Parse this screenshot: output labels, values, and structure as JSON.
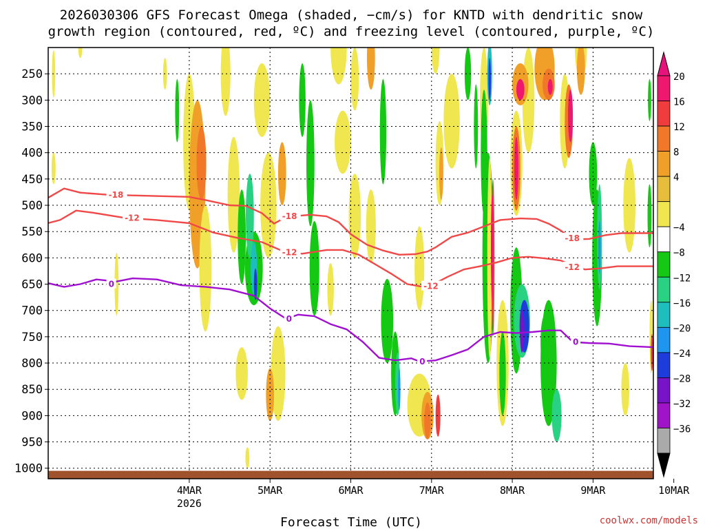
{
  "chart_data": {
    "type": "heatmap",
    "title_line1": "2026030306 GFS Forecast Omega (shaded, −cm/s) for KNTD with dendritic snow",
    "title_line2": "growth region (contoured, red, ºC) and freezing level (contoured, purple, ºC)",
    "xlabel": "Forecast Time (UTC)",
    "credit": "coolwx.com/models",
    "x_ticks": [
      {
        "label": "4MAR",
        "sublabel": "2026",
        "day": 1
      },
      {
        "label": "5MAR",
        "sublabel": "",
        "day": 2
      },
      {
        "label": "6MAR",
        "sublabel": "",
        "day": 3
      },
      {
        "label": "7MAR",
        "sublabel": "",
        "day": 4
      },
      {
        "label": "8MAR",
        "sublabel": "",
        "day": 5
      },
      {
        "label": "9MAR",
        "sublabel": "",
        "day": 6
      },
      {
        "label": "10MAR",
        "sublabel": "",
        "day": 7
      }
    ],
    "x_range_days": [
      -0.747,
      6.747
    ],
    "y_ticks": [
      "250",
      "300",
      "350",
      "400",
      "450",
      "500",
      "550",
      "600",
      "650",
      "700",
      "750",
      "800",
      "850",
      "900",
      "950",
      "1000"
    ],
    "y_range_hpa": [
      200,
      1020
    ],
    "colorbar": {
      "labels": [
        "20",
        "16",
        "12",
        "8",
        "4",
        "−4",
        "−8",
        "−12",
        "−16",
        "−20",
        "−24",
        "−28",
        "−32",
        "−36"
      ],
      "colors": [
        "#f0186e",
        "#f03c3c",
        "#f07828",
        "#f0a028",
        "#e6be3c",
        "#f0e650",
        "#ffffff",
        "#14c814",
        "#28d282",
        "#1ebebe",
        "#1e96f0",
        "#1e3cdc",
        "#7814c8",
        "#a014c8",
        "#aaaaaa"
      ]
    },
    "contours": [
      {
        "name": "dendritic-18",
        "label": "-18",
        "color": "#f04848",
        "points": [
          [
            -0.75,
            486
          ],
          [
            -0.55,
            468
          ],
          [
            -0.35,
            476
          ],
          [
            0,
            480
          ],
          [
            0.5,
            482
          ],
          [
            1,
            484
          ],
          [
            1.2,
            490
          ],
          [
            1.5,
            500
          ],
          [
            1.7,
            501
          ],
          [
            1.9,
            515
          ],
          [
            2.05,
            535
          ],
          [
            2.2,
            522
          ],
          [
            2.5,
            518
          ],
          [
            2.7,
            521
          ],
          [
            2.85,
            532
          ],
          [
            3.0,
            555
          ],
          [
            3.2,
            575
          ],
          [
            3.4,
            586
          ],
          [
            3.6,
            594
          ],
          [
            3.8,
            593
          ],
          [
            3.95,
            588
          ],
          [
            4.05,
            580
          ],
          [
            4.25,
            560
          ],
          [
            4.45,
            552
          ],
          [
            4.65,
            540
          ],
          [
            4.85,
            528
          ],
          [
            5.1,
            525
          ],
          [
            5.3,
            526
          ],
          [
            5.45,
            535
          ],
          [
            5.6,
            548
          ],
          [
            5.75,
            565
          ],
          [
            5.95,
            564
          ],
          [
            6.15,
            557
          ],
          [
            6.35,
            553
          ],
          [
            6.55,
            553
          ],
          [
            6.75,
            553
          ]
        ],
        "label_at": [
          0.0,
          480
        ]
      },
      {
        "name": "dendritic-12",
        "label": "-12",
        "color": "#f04848",
        "points": [
          [
            -0.75,
            534
          ],
          [
            -0.6,
            528
          ],
          [
            -0.4,
            510
          ],
          [
            -0.2,
            514
          ],
          [
            0.2,
            524
          ],
          [
            0.6,
            528
          ],
          [
            1.0,
            534
          ],
          [
            1.3,
            552
          ],
          [
            1.6,
            562
          ],
          [
            1.9,
            570
          ],
          [
            2.2,
            590
          ],
          [
            2.4,
            592
          ],
          [
            2.7,
            585
          ],
          [
            2.9,
            585
          ],
          [
            3.1,
            594
          ],
          [
            3.3,
            612
          ],
          [
            3.5,
            630
          ],
          [
            3.7,
            650
          ],
          [
            3.9,
            655
          ],
          [
            4.05,
            648
          ],
          [
            4.2,
            636
          ],
          [
            4.4,
            622
          ],
          [
            4.6,
            616
          ],
          [
            4.8,
            609
          ],
          [
            5.0,
            600
          ],
          [
            5.2,
            598
          ],
          [
            5.4,
            601
          ],
          [
            5.6,
            605
          ],
          [
            5.75,
            615
          ],
          [
            5.9,
            622
          ],
          [
            6.1,
            620
          ],
          [
            6.3,
            616
          ],
          [
            6.55,
            616
          ],
          [
            6.75,
            616
          ]
        ],
        "label_at": [
          0.2,
          524
        ]
      },
      {
        "name": "freezing-level",
        "label": "0",
        "color": "#a010d0",
        "points": [
          [
            -0.75,
            648
          ],
          [
            -0.55,
            655
          ],
          [
            -0.35,
            650
          ],
          [
            -0.15,
            641
          ],
          [
            0.1,
            645
          ],
          [
            0.3,
            639
          ],
          [
            0.6,
            641
          ],
          [
            0.9,
            652
          ],
          [
            1.2,
            655
          ],
          [
            1.5,
            660
          ],
          [
            1.8,
            672
          ],
          [
            2.0,
            696
          ],
          [
            2.2,
            716
          ],
          [
            2.35,
            708
          ],
          [
            2.55,
            711
          ],
          [
            2.75,
            726
          ],
          [
            2.95,
            736
          ],
          [
            3.15,
            760
          ],
          [
            3.35,
            790
          ],
          [
            3.55,
            795
          ],
          [
            3.75,
            791
          ],
          [
            3.85,
            797
          ],
          [
            4.05,
            795
          ],
          [
            4.25,
            785
          ],
          [
            4.45,
            774
          ],
          [
            4.65,
            750
          ],
          [
            4.85,
            741
          ],
          [
            5.05,
            743
          ],
          [
            5.25,
            741
          ],
          [
            5.45,
            738
          ],
          [
            5.6,
            738
          ],
          [
            5.75,
            760
          ],
          [
            5.95,
            762
          ],
          [
            6.2,
            763
          ],
          [
            6.45,
            768
          ],
          [
            6.75,
            770
          ]
        ],
        "label_at": [
          0.0,
          650
        ]
      }
    ],
    "label_marks": [
      {
        "text": "-18",
        "color": "#f04848",
        "day": 2.15,
        "hpa": 521
      },
      {
        "text": "-12",
        "color": "#f04848",
        "day": 2.15,
        "hpa": 590
      },
      {
        "text": "-12",
        "color": "#f04848",
        "day": 3.9,
        "hpa": 654
      },
      {
        "text": "-18",
        "color": "#f04848",
        "day": 5.65,
        "hpa": 563
      },
      {
        "text": "-12",
        "color": "#f04848",
        "day": 5.65,
        "hpa": 618
      },
      {
        "text": "0",
        "color": "#a010d0",
        "day": 2.2,
        "hpa": 716
      },
      {
        "text": "0",
        "color": "#a010d0",
        "day": 3.85,
        "hpa": 797
      },
      {
        "text": "0",
        "color": "#a010d0",
        "day": 5.75,
        "hpa": 760
      }
    ],
    "omega_cells": [
      {
        "day": -0.68,
        "hpa": 250,
        "w": 0.04,
        "h": 90,
        "v": 6
      },
      {
        "day": -0.68,
        "hpa": 430,
        "w": 0.05,
        "h": 60,
        "v": 6
      },
      {
        "day": -0.35,
        "hpa": 200,
        "w": 0.05,
        "h": 40,
        "v": 6
      },
      {
        "day": 0.1,
        "hpa": 650,
        "w": 0.05,
        "h": 120,
        "v": 6
      },
      {
        "day": 0.7,
        "hpa": 250,
        "w": 0.05,
        "h": 60,
        "v": 6
      },
      {
        "day": 1.0,
        "hpa": 380,
        "w": 0.15,
        "h": 260,
        "v": 6
      },
      {
        "day": 1.1,
        "hpa": 460,
        "w": 0.2,
        "h": 320,
        "v": 10
      },
      {
        "day": 1.15,
        "hpa": 420,
        "w": 0.12,
        "h": 140,
        "v": 14
      },
      {
        "day": 1.2,
        "hpa": 620,
        "w": 0.15,
        "h": 240,
        "v": 6
      },
      {
        "day": 1.45,
        "hpa": 250,
        "w": 0.12,
        "h": 160,
        "v": 6
      },
      {
        "day": 1.55,
        "hpa": 480,
        "w": 0.15,
        "h": 220,
        "v": 6
      },
      {
        "day": 0.85,
        "hpa": 320,
        "w": 0.05,
        "h": 120,
        "v": -6
      },
      {
        "day": 1.65,
        "hpa": 560,
        "w": 0.1,
        "h": 180,
        "v": -6
      },
      {
        "day": 1.8,
        "hpa": 620,
        "w": 0.22,
        "h": 140,
        "v": -10
      },
      {
        "day": 1.75,
        "hpa": 520,
        "w": 0.1,
        "h": 160,
        "v": -14
      },
      {
        "day": 1.8,
        "hpa": 620,
        "w": 0.08,
        "h": 100,
        "v": -18
      },
      {
        "day": 1.82,
        "hpa": 650,
        "w": 0.04,
        "h": 60,
        "v": -24
      },
      {
        "day": 1.9,
        "hpa": 300,
        "w": 0.2,
        "h": 140,
        "v": 6
      },
      {
        "day": 1.98,
        "hpa": 500,
        "w": 0.2,
        "h": 200,
        "v": 6
      },
      {
        "day": 2.15,
        "hpa": 440,
        "w": 0.1,
        "h": 120,
        "v": 8
      },
      {
        "day": 2.1,
        "hpa": 820,
        "w": 0.18,
        "h": 180,
        "v": 6
      },
      {
        "day": 2.0,
        "hpa": 860,
        "w": 0.1,
        "h": 100,
        "v": 10
      },
      {
        "day": 1.65,
        "hpa": 820,
        "w": 0.15,
        "h": 100,
        "v": 6
      },
      {
        "day": 1.72,
        "hpa": 980,
        "w": 0.05,
        "h": 40,
        "v": 6
      },
      {
        "day": 2.4,
        "hpa": 300,
        "w": 0.08,
        "h": 140,
        "v": -6
      },
      {
        "day": 2.5,
        "hpa": 420,
        "w": 0.1,
        "h": 240,
        "v": -6
      },
      {
        "day": 2.55,
        "hpa": 620,
        "w": 0.12,
        "h": 180,
        "v": -6
      },
      {
        "day": 2.85,
        "hpa": 200,
        "w": 0.2,
        "h": 140,
        "v": 6
      },
      {
        "day": 2.9,
        "hpa": 380,
        "w": 0.2,
        "h": 120,
        "v": 6
      },
      {
        "day": 3.05,
        "hpa": 260,
        "w": 0.1,
        "h": 120,
        "v": 6
      },
      {
        "day": 3.25,
        "hpa": 220,
        "w": 0.1,
        "h": 120,
        "v": 10
      },
      {
        "day": 3.05,
        "hpa": 520,
        "w": 0.15,
        "h": 160,
        "v": 6
      },
      {
        "day": 3.25,
        "hpa": 540,
        "w": 0.12,
        "h": 140,
        "v": 6
      },
      {
        "day": 2.75,
        "hpa": 660,
        "w": 0.08,
        "h": 100,
        "v": 6
      },
      {
        "day": 3.4,
        "hpa": 360,
        "w": 0.08,
        "h": 200,
        "v": -6
      },
      {
        "day": 3.45,
        "hpa": 720,
        "w": 0.15,
        "h": 160,
        "v": -6
      },
      {
        "day": 3.55,
        "hpa": 820,
        "w": 0.1,
        "h": 160,
        "v": -6
      },
      {
        "day": 3.58,
        "hpa": 840,
        "w": 0.06,
        "h": 120,
        "v": -14
      },
      {
        "day": 3.6,
        "hpa": 850,
        "w": 0.03,
        "h": 80,
        "v": -20
      },
      {
        "day": 3.85,
        "hpa": 620,
        "w": 0.12,
        "h": 160,
        "v": 6
      },
      {
        "day": 3.85,
        "hpa": 880,
        "w": 0.3,
        "h": 120,
        "v": 6
      },
      {
        "day": 3.95,
        "hpa": 900,
        "w": 0.15,
        "h": 90,
        "v": 10
      },
      {
        "day": 3.95,
        "hpa": 910,
        "w": 0.08,
        "h": 70,
        "v": 14
      },
      {
        "day": 4.08,
        "hpa": 900,
        "w": 0.06,
        "h": 80,
        "v": 18
      },
      {
        "day": 4.1,
        "hpa": 420,
        "w": 0.1,
        "h": 160,
        "v": 6
      },
      {
        "day": 4.12,
        "hpa": 440,
        "w": 0.05,
        "h": 100,
        "v": 10
      },
      {
        "day": 4.25,
        "hpa": 340,
        "w": 0.2,
        "h": 180,
        "v": 6
      },
      {
        "day": 4.05,
        "hpa": 200,
        "w": 0.1,
        "h": 100,
        "v": 6
      },
      {
        "day": 4.45,
        "hpa": 250,
        "w": 0.08,
        "h": 100,
        "v": -6
      },
      {
        "day": 4.55,
        "hpa": 350,
        "w": 0.05,
        "h": 160,
        "v": -10
      },
      {
        "day": 4.65,
        "hpa": 300,
        "w": 0.1,
        "h": 200,
        "v": 6
      },
      {
        "day": 4.72,
        "hpa": 250,
        "w": 0.06,
        "h": 120,
        "v": -16
      },
      {
        "day": 4.72,
        "hpa": 260,
        "w": 0.03,
        "h": 80,
        "v": -24
      },
      {
        "day": 4.65,
        "hpa": 400,
        "w": 0.08,
        "h": 240,
        "v": -6
      },
      {
        "day": 4.7,
        "hpa": 600,
        "w": 0.14,
        "h": 400,
        "v": -6
      },
      {
        "day": 4.72,
        "hpa": 600,
        "w": 0.06,
        "h": 380,
        "v": 6
      },
      {
        "day": 4.76,
        "hpa": 600,
        "w": 0.04,
        "h": 300,
        "v": 16
      },
      {
        "day": 4.75,
        "hpa": 580,
        "w": 0.03,
        "h": 200,
        "v": 20
      },
      {
        "day": 4.88,
        "hpa": 800,
        "w": 0.15,
        "h": 240,
        "v": 6
      },
      {
        "day": 4.88,
        "hpa": 820,
        "w": 0.08,
        "h": 160,
        "v": -6
      },
      {
        "day": 5.05,
        "hpa": 420,
        "w": 0.15,
        "h": 200,
        "v": 6
      },
      {
        "day": 5.05,
        "hpa": 430,
        "w": 0.1,
        "h": 160,
        "v": 14
      },
      {
        "day": 5.05,
        "hpa": 430,
        "w": 0.05,
        "h": 120,
        "v": 20
      },
      {
        "day": 5.2,
        "hpa": 300,
        "w": 0.15,
        "h": 200,
        "v": 6
      },
      {
        "day": 5.1,
        "hpa": 270,
        "w": 0.2,
        "h": 80,
        "v": 10
      },
      {
        "day": 5.1,
        "hpa": 280,
        "w": 0.1,
        "h": 40,
        "v": 20
      },
      {
        "day": 5.05,
        "hpa": 700,
        "w": 0.15,
        "h": 240,
        "v": -6
      },
      {
        "day": 5.12,
        "hpa": 720,
        "w": 0.2,
        "h": 140,
        "v": -14
      },
      {
        "day": 5.15,
        "hpa": 730,
        "w": 0.12,
        "h": 100,
        "v": -24
      },
      {
        "day": 5.12,
        "hpa": 740,
        "w": 0.05,
        "h": 80,
        "v": -28
      },
      {
        "day": 5.4,
        "hpa": 240,
        "w": 0.25,
        "h": 120,
        "v": 10
      },
      {
        "day": 5.45,
        "hpa": 270,
        "w": 0.15,
        "h": 60,
        "v": 14
      },
      {
        "day": 5.47,
        "hpa": 275,
        "w": 0.06,
        "h": 30,
        "v": 20
      },
      {
        "day": 5.45,
        "hpa": 800,
        "w": 0.2,
        "h": 240,
        "v": -6
      },
      {
        "day": 5.4,
        "hpa": 760,
        "w": 0.1,
        "h": 100,
        "v": -10
      },
      {
        "day": 5.55,
        "hpa": 900,
        "w": 0.12,
        "h": 100,
        "v": -14
      },
      {
        "day": 5.65,
        "hpa": 340,
        "w": 0.12,
        "h": 180,
        "v": 6
      },
      {
        "day": 5.7,
        "hpa": 340,
        "w": 0.1,
        "h": 140,
        "v": 14
      },
      {
        "day": 5.72,
        "hpa": 330,
        "w": 0.06,
        "h": 100,
        "v": 20
      },
      {
        "day": 5.85,
        "hpa": 200,
        "w": 0.15,
        "h": 120,
        "v": 6
      },
      {
        "day": 5.85,
        "hpa": 240,
        "w": 0.1,
        "h": 100,
        "v": 10
      },
      {
        "day": 6.0,
        "hpa": 440,
        "w": 0.1,
        "h": 120,
        "v": -6
      },
      {
        "day": 6.05,
        "hpa": 600,
        "w": 0.12,
        "h": 260,
        "v": -6
      },
      {
        "day": 6.08,
        "hpa": 560,
        "w": 0.06,
        "h": 200,
        "v": -14
      },
      {
        "day": 6.08,
        "hpa": 580,
        "w": 0.03,
        "h": 100,
        "v": -20
      },
      {
        "day": 6.45,
        "hpa": 500,
        "w": 0.15,
        "h": 180,
        "v": 6
      },
      {
        "day": 6.4,
        "hpa": 850,
        "w": 0.1,
        "h": 100,
        "v": 6
      },
      {
        "day": 6.7,
        "hpa": 300,
        "w": 0.04,
        "h": 80,
        "v": -6
      },
      {
        "day": 6.7,
        "hpa": 520,
        "w": 0.05,
        "h": 120,
        "v": -6
      },
      {
        "day": 6.72,
        "hpa": 750,
        "w": 0.04,
        "h": 140,
        "v": 6
      },
      {
        "day": 6.73,
        "hpa": 780,
        "w": 0.03,
        "h": 70,
        "v": 16
      }
    ],
    "ground_hpa": 1005
  }
}
